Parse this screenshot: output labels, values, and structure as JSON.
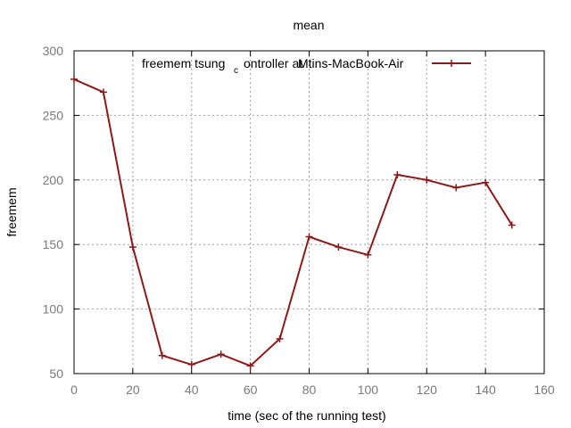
{
  "chart_data": {
    "type": "line",
    "title": "mean",
    "xlabel": "time (sec of the running test)",
    "ylabel": "freemem",
    "xlim": [
      0,
      160
    ],
    "ylim": [
      50,
      300
    ],
    "xticks": [
      0,
      20,
      40,
      60,
      80,
      100,
      120,
      140,
      160
    ],
    "yticks": [
      50,
      100,
      150,
      200,
      250,
      300
    ],
    "grid": true,
    "legend_position": "top-right",
    "series": [
      {
        "name_parts": [
          "freemem tsung",
          "c",
          "ontroller at ",
          "Mtins-MacBook-Air"
        ],
        "color": "#8b1a1a",
        "marker": "plus",
        "x": [
          0,
          10,
          20,
          30,
          40,
          50,
          60,
          70,
          80,
          90,
          100,
          110,
          120,
          130,
          140,
          149
        ],
        "y": [
          278,
          268,
          148,
          64,
          57,
          65,
          56,
          77,
          156,
          148,
          142,
          204,
          200,
          194,
          198,
          165
        ]
      }
    ]
  }
}
